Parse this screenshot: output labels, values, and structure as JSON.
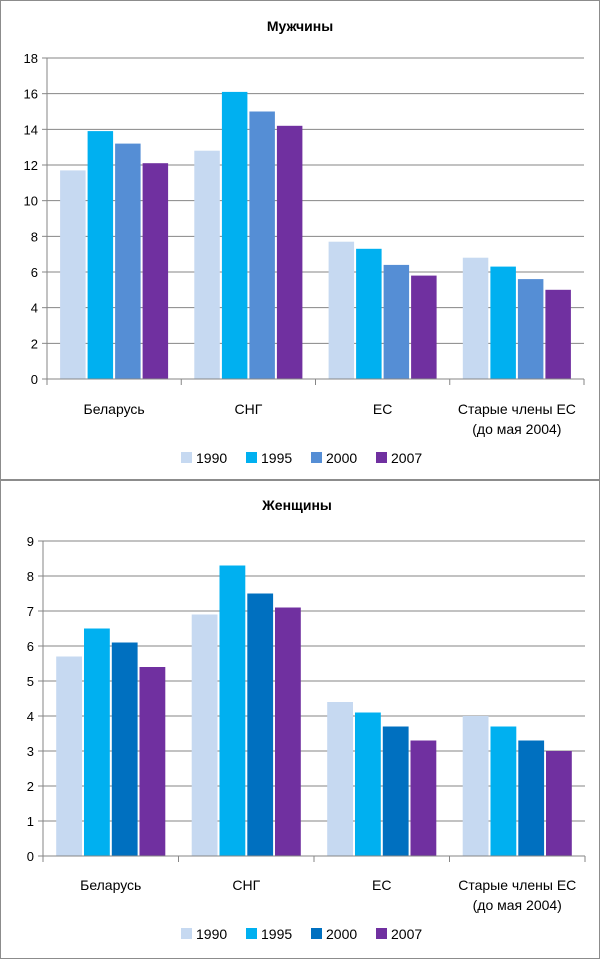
{
  "chart_data": [
    {
      "type": "bar",
      "title": "Мужчины",
      "categories": [
        [
          "Беларусь"
        ],
        [
          "СНГ"
        ],
        [
          "ЕС"
        ],
        [
          "Старые члены ЕС",
          "(до мая 2004)"
        ]
      ],
      "series": [
        {
          "name": "1990",
          "color": "#c6d9f1",
          "values": [
            11.7,
            12.8,
            7.7,
            6.8
          ]
        },
        {
          "name": "1995",
          "color": "#00b0f0",
          "values": [
            13.9,
            16.1,
            7.3,
            6.3
          ]
        },
        {
          "name": "2000",
          "color": "#558ed5",
          "values": [
            13.2,
            15.0,
            6.4,
            5.6
          ]
        },
        {
          "name": "2007",
          "color": "#7030a0",
          "values": [
            12.1,
            14.2,
            5.8,
            5.0
          ]
        }
      ],
      "ylim": [
        0,
        18
      ],
      "yticks": [
        0,
        2,
        4,
        6,
        8,
        10,
        12,
        14,
        16,
        18
      ],
      "legend": "bottom"
    },
    {
      "type": "bar",
      "title": "Женщины",
      "categories": [
        [
          "Беларусь"
        ],
        [
          "СНГ"
        ],
        [
          "ЕС"
        ],
        [
          "Старые члены ЕС",
          "(до мая 2004)"
        ]
      ],
      "series": [
        {
          "name": "1990",
          "color": "#c6d9f1",
          "values": [
            5.7,
            6.9,
            4.4,
            4.0
          ]
        },
        {
          "name": "1995",
          "color": "#00b0f0",
          "values": [
            6.5,
            8.3,
            4.1,
            3.7
          ]
        },
        {
          "name": "2000",
          "color": "#0070c0",
          "values": [
            6.1,
            7.5,
            3.7,
            3.3
          ]
        },
        {
          "name": "2007",
          "color": "#7030a0",
          "values": [
            5.4,
            7.1,
            3.3,
            3.0
          ]
        }
      ],
      "ylim": [
        0,
        9
      ],
      "yticks": [
        0,
        1,
        2,
        3,
        4,
        5,
        6,
        7,
        8,
        9
      ],
      "legend": "bottom"
    }
  ]
}
